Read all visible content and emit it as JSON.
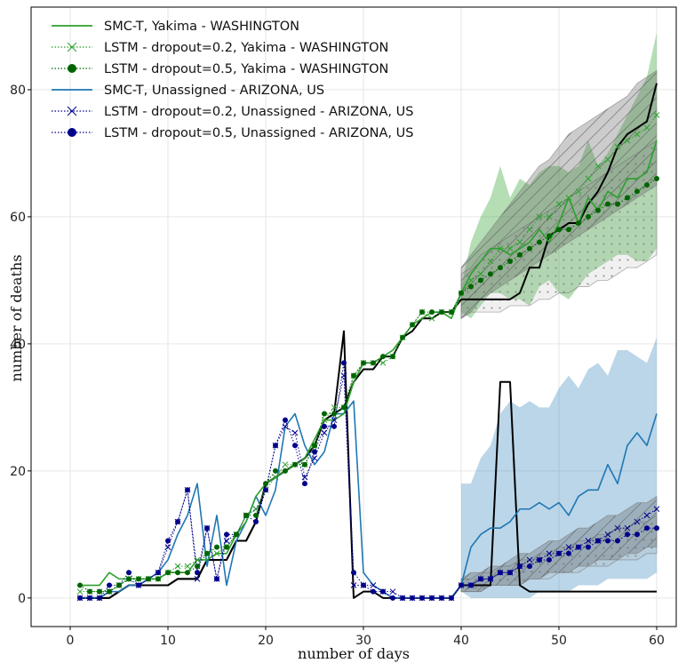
{
  "chart_data": {
    "type": "line",
    "xlabel": "number of days",
    "ylabel": "number of deaths",
    "xlim": [
      -4,
      62
    ],
    "ylim": [
      -4.5,
      93
    ],
    "xticks": [
      0,
      10,
      20,
      30,
      40,
      50,
      60
    ],
    "yticks": [
      0,
      20,
      40,
      60,
      80
    ],
    "grid": true,
    "legend_position": "top-left",
    "colors": {
      "wa": "#2ca02c",
      "wa_dark": "#006400",
      "az": "#1f77b4",
      "az_dark": "#00008b",
      "actual": "#000000"
    },
    "legend": [
      {
        "label": "SMC-T, Yakima - WASHINGTON",
        "style": "solid",
        "color": "#2ca02c"
      },
      {
        "label": "LSTM - dropout=0.2, Yakima - WASHINGTON",
        "style": "dotted-x",
        "color": "#2ca02c"
      },
      {
        "label": "LSTM - dropout=0.5, Yakima - WASHINGTON",
        "style": "dotted-dot",
        "color": "#006400"
      },
      {
        "label": "SMC-T, Unassigned - ARIZONA, US",
        "style": "solid",
        "color": "#1f77b4"
      },
      {
        "label": "LSTM - dropout=0.2, Unassigned - ARIZONA, US",
        "style": "dotted-x",
        "color": "#00008b"
      },
      {
        "label": "LSTM - dropout=0.5, Unassigned - ARIZONA, US",
        "style": "dotted-dot",
        "color": "#00008b"
      }
    ],
    "x": [
      1,
      2,
      3,
      4,
      5,
      6,
      7,
      8,
      9,
      10,
      11,
      12,
      13,
      14,
      15,
      16,
      17,
      18,
      19,
      20,
      21,
      22,
      23,
      24,
      25,
      26,
      27,
      28,
      29,
      30,
      31,
      32,
      33,
      34,
      35,
      36,
      37,
      38,
      39,
      40,
      41,
      42,
      43,
      44,
      45,
      46,
      47,
      48,
      49,
      50,
      51,
      52,
      53,
      54,
      55,
      56,
      57,
      58,
      59,
      60
    ],
    "series": [
      {
        "key": "wa_actual",
        "values": [
          0,
          0,
          0,
          0,
          1,
          2,
          2,
          2,
          2,
          2,
          3,
          3,
          3,
          6,
          6,
          6,
          9,
          9,
          12,
          18,
          19,
          20,
          21,
          22,
          24,
          28,
          29,
          30,
          34,
          36,
          36,
          38,
          38,
          41,
          42,
          44,
          44,
          45,
          45,
          47,
          47,
          47,
          47,
          47,
          47,
          48,
          52,
          52,
          57,
          58,
          59,
          59,
          62,
          64,
          67,
          71,
          73,
          74,
          75,
          81
        ]
      },
      {
        "key": "az_actual",
        "values": [
          0,
          0,
          0,
          0,
          1,
          2,
          2,
          2,
          2,
          2,
          3,
          3,
          3,
          6,
          6,
          6,
          9,
          9,
          12,
          18,
          19,
          20,
          21,
          22,
          24,
          28,
          29,
          42,
          0,
          1,
          1,
          0,
          0,
          0,
          0,
          0,
          0,
          0,
          0,
          2,
          2,
          2,
          2,
          34,
          34,
          2,
          1,
          1,
          1,
          1,
          1,
          1,
          1,
          1,
          1,
          1,
          1,
          1,
          1,
          1
        ]
      },
      {
        "key": "smc_wa",
        "values": [
          2,
          2,
          2,
          4,
          3,
          3,
          3,
          3,
          3,
          4,
          4,
          4,
          6,
          6,
          7,
          7,
          10,
          12,
          16,
          18,
          19,
          20,
          21,
          22,
          25,
          28,
          28,
          29,
          34,
          37,
          37,
          38,
          39,
          41,
          43,
          44,
          45,
          45,
          44,
          48,
          51,
          53,
          55,
          55,
          54,
          55,
          56,
          58,
          56,
          59,
          63,
          59,
          63,
          61,
          64,
          63,
          66,
          66,
          67,
          72
        ]
      },
      {
        "key": "smc_az",
        "values": [
          0,
          0,
          0,
          1,
          1,
          2,
          2,
          3,
          4,
          6,
          10,
          13,
          18,
          5,
          13,
          2,
          9,
          12,
          16,
          13,
          17,
          27,
          29,
          24,
          21,
          23,
          29,
          29,
          31,
          4,
          2,
          1,
          0,
          0,
          0,
          0,
          0,
          0,
          0,
          2,
          8,
          10,
          11,
          11,
          12,
          14,
          14,
          15,
          14,
          15,
          13,
          16,
          17,
          17,
          21,
          18,
          24,
          26,
          24,
          29
        ]
      },
      {
        "key": "lstm02_wa",
        "values": [
          1,
          1,
          1,
          1,
          2,
          3,
          3,
          3,
          3,
          4,
          5,
          5,
          6,
          7,
          7,
          8,
          10,
          13,
          14,
          17,
          19,
          21,
          21,
          21,
          24,
          28,
          30,
          30,
          35,
          37,
          37,
          37,
          38,
          41,
          43,
          45,
          44,
          45,
          45,
          48,
          50,
          51,
          53,
          55,
          55,
          56,
          58,
          60,
          60,
          62,
          63,
          64,
          66,
          68,
          69,
          71,
          72,
          73,
          74,
          76
        ]
      },
      {
        "key": "lstm05_wa",
        "values": [
          2,
          1,
          1,
          1,
          2,
          3,
          3,
          3,
          3,
          4,
          4,
          4,
          5,
          7,
          8,
          8,
          10,
          13,
          13,
          18,
          20,
          20,
          21,
          21,
          24,
          29,
          29,
          30,
          35,
          37,
          37,
          38,
          38,
          41,
          43,
          45,
          45,
          45,
          45,
          48,
          49,
          50,
          51,
          52,
          53,
          54,
          55,
          56,
          57,
          58,
          58,
          59,
          60,
          61,
          62,
          62,
          63,
          64,
          65,
          66
        ]
      },
      {
        "key": "lstm02_az",
        "values": [
          0,
          0,
          0,
          1,
          2,
          3,
          2,
          3,
          4,
          8,
          12,
          17,
          3,
          11,
          3,
          9,
          10,
          13,
          14,
          17,
          24,
          27,
          26,
          19,
          22,
          26,
          28,
          35,
          2,
          2,
          2,
          1,
          1,
          0,
          0,
          0,
          0,
          0,
          0,
          2,
          2,
          3,
          3,
          4,
          4,
          5,
          6,
          6,
          7,
          7,
          8,
          8,
          9,
          9,
          10,
          11,
          11,
          12,
          13,
          14
        ]
      },
      {
        "key": "lstm05_az",
        "values": [
          0,
          0,
          0,
          2,
          2,
          4,
          2,
          3,
          4,
          9,
          12,
          17,
          4,
          11,
          3,
          10,
          10,
          13,
          12,
          17,
          24,
          28,
          24,
          18,
          23,
          27,
          27,
          37,
          4,
          2,
          1,
          1,
          0,
          0,
          0,
          0,
          0,
          0,
          0,
          2,
          2,
          3,
          3,
          4,
          4,
          5,
          5,
          6,
          6,
          7,
          7,
          8,
          8,
          9,
          9,
          9,
          10,
          10,
          11,
          11
        ]
      }
    ],
    "bands": {
      "x": [
        40,
        41,
        42,
        43,
        44,
        45,
        46,
        47,
        48,
        49,
        50,
        51,
        52,
        53,
        54,
        55,
        56,
        57,
        58,
        59,
        60
      ],
      "smc_wa": {
        "lower": [
          45,
          44,
          46,
          48,
          48,
          47,
          47,
          46,
          49,
          50,
          48,
          47,
          49,
          51,
          52,
          53,
          54,
          54,
          53,
          53,
          55
        ],
        "upper": [
          49,
          56,
          60,
          63,
          68,
          63,
          66,
          65,
          67,
          68,
          68,
          67,
          68,
          72,
          68,
          70,
          73,
          76,
          79,
          82,
          89
        ]
      },
      "lstm02_wa": {
        "lower": [
          44,
          45,
          47,
          48,
          49,
          50,
          51,
          52,
          53,
          54,
          55,
          56,
          57,
          58,
          59,
          60,
          61,
          62,
          63,
          64,
          65
        ],
        "upper": [
          52,
          54,
          56,
          58,
          60,
          62,
          64,
          66,
          68,
          69,
          71,
          73,
          74,
          75,
          76,
          77,
          78,
          79,
          81,
          82,
          83
        ]
      },
      "lstm05_wa": {
        "lower": [
          44,
          45,
          45,
          45,
          45,
          46,
          46,
          46,
          47,
          47,
          48,
          48,
          49,
          49,
          50,
          50,
          51,
          52,
          52,
          53,
          54
        ],
        "upper": [
          51,
          52,
          54,
          55,
          56,
          57,
          58,
          59,
          60,
          61,
          62,
          63,
          64,
          65,
          66,
          67,
          68,
          69,
          70,
          71,
          72
        ]
      },
      "smc_az": {
        "lower": [
          1,
          0,
          0,
          0,
          0,
          0,
          0,
          0,
          1,
          1,
          1,
          1,
          2,
          2,
          2,
          3,
          3,
          3,
          3,
          3,
          4
        ],
        "upper": [
          18,
          18,
          22,
          24,
          29,
          31,
          30,
          31,
          30,
          30,
          33,
          35,
          33,
          36,
          37,
          35,
          39,
          39,
          38,
          37,
          41
        ]
      },
      "lstm02_az": {
        "lower": [
          1,
          1,
          1,
          2,
          2,
          2,
          2,
          3,
          3,
          4,
          4,
          4,
          5,
          5,
          6,
          6,
          6,
          7,
          7,
          8,
          8
        ],
        "upper": [
          3,
          4,
          4,
          5,
          5,
          6,
          7,
          7,
          8,
          9,
          9,
          10,
          11,
          11,
          12,
          13,
          13,
          14,
          15,
          15,
          16
        ]
      },
      "lstm05_az": {
        "lower": [
          1,
          1,
          1,
          2,
          2,
          2,
          2,
          3,
          3,
          3,
          4,
          4,
          4,
          5,
          5,
          5,
          6,
          6,
          6,
          7,
          7
        ],
        "upper": [
          3,
          3,
          4,
          4,
          5,
          5,
          6,
          6,
          7,
          7,
          8,
          8,
          9,
          9,
          10,
          10,
          11,
          11,
          12,
          12,
          13
        ]
      }
    }
  }
}
